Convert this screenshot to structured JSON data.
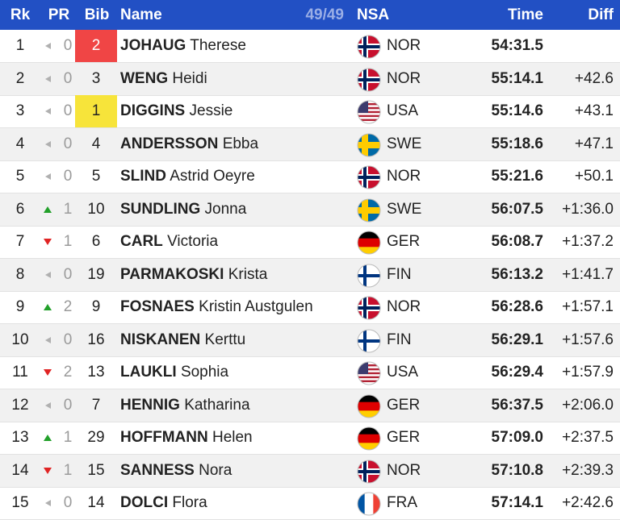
{
  "header": {
    "rank": "Rk",
    "pr": "PR",
    "bib": "Bib",
    "name": "Name",
    "count": "49/49",
    "nsa": "NSA",
    "time": "Time",
    "diff": "Diff"
  },
  "rows": [
    {
      "rank": 1,
      "trend": "same",
      "pr": 0,
      "bib": 2,
      "bib_highlight": "#f04545",
      "bib_text_color": "#ffffff",
      "surname": "JOHAUG",
      "given": "Therese",
      "nsa": "NOR",
      "flag": {
        "pattern": "nordic",
        "colors": [
          "#c8102e",
          "#ffffff",
          "#00205b"
        ]
      },
      "time": "54:31.5"
    },
    {
      "rank": 2,
      "trend": "same",
      "pr": 0,
      "bib": 3,
      "surname": "WENG",
      "given": "Heidi",
      "nsa": "NOR",
      "flag": {
        "pattern": "nordic",
        "colors": [
          "#c8102e",
          "#ffffff",
          "#00205b"
        ]
      },
      "time": "55:14.1",
      "diff": "+42.6"
    },
    {
      "rank": 3,
      "trend": "same",
      "pr": 0,
      "bib": 1,
      "bib_highlight": "#f7e43a",
      "bib_text_color": "#222222",
      "surname": "DIGGINS",
      "given": "Jessie",
      "nsa": "USA",
      "flag": {
        "pattern": "usa",
        "colors": [
          "#b22234",
          "#ffffff",
          "#3c3b6e"
        ]
      },
      "time": "55:14.6",
      "diff": "+43.1"
    },
    {
      "rank": 4,
      "trend": "same",
      "pr": 0,
      "bib": 4,
      "surname": "ANDERSSON",
      "given": "Ebba",
      "nsa": "SWE",
      "flag": {
        "pattern": "nordic",
        "colors": [
          "#006aa7",
          "#fecc00",
          "#fecc00"
        ]
      },
      "time": "55:18.6",
      "diff": "+47.1"
    },
    {
      "rank": 5,
      "trend": "same",
      "pr": 0,
      "bib": 5,
      "surname": "SLIND",
      "given": "Astrid Oeyre",
      "nsa": "NOR",
      "flag": {
        "pattern": "nordic",
        "colors": [
          "#c8102e",
          "#ffffff",
          "#00205b"
        ]
      },
      "time": "55:21.6",
      "diff": "+50.1"
    },
    {
      "rank": 6,
      "trend": "up",
      "pr": 1,
      "bib": 10,
      "surname": "SUNDLING",
      "given": "Jonna",
      "nsa": "SWE",
      "flag": {
        "pattern": "nordic",
        "colors": [
          "#006aa7",
          "#fecc00",
          "#fecc00"
        ]
      },
      "time": "56:07.5",
      "diff": "+1:36.0"
    },
    {
      "rank": 7,
      "trend": "down",
      "pr": 1,
      "bib": 6,
      "surname": "CARL",
      "given": "Victoria",
      "nsa": "GER",
      "flag": {
        "pattern": "hstripes",
        "colors": [
          "#000000",
          "#dd0000",
          "#ffce00"
        ]
      },
      "time": "56:08.7",
      "diff": "+1:37.2"
    },
    {
      "rank": 8,
      "trend": "same",
      "pr": 0,
      "bib": 19,
      "surname": "PARMAKOSKI",
      "given": "Krista",
      "nsa": "FIN",
      "flag": {
        "pattern": "nordic",
        "colors": [
          "#ffffff",
          "#ffffff",
          "#003580"
        ]
      },
      "time": "56:13.2",
      "diff": "+1:41.7"
    },
    {
      "rank": 9,
      "trend": "up",
      "pr": 2,
      "bib": 9,
      "surname": "FOSNAES",
      "given": "Kristin Austgulen",
      "nsa": "NOR",
      "flag": {
        "pattern": "nordic",
        "colors": [
          "#c8102e",
          "#ffffff",
          "#00205b"
        ]
      },
      "time": "56:28.6",
      "diff": "+1:57.1"
    },
    {
      "rank": 10,
      "trend": "same",
      "pr": 0,
      "bib": 16,
      "surname": "NISKANEN",
      "given": "Kerttu",
      "nsa": "FIN",
      "flag": {
        "pattern": "nordic",
        "colors": [
          "#ffffff",
          "#ffffff",
          "#003580"
        ]
      },
      "time": "56:29.1",
      "diff": "+1:57.6"
    },
    {
      "rank": 11,
      "trend": "down",
      "pr": 2,
      "bib": 13,
      "surname": "LAUKLI",
      "given": "Sophia",
      "nsa": "USA",
      "flag": {
        "pattern": "usa",
        "colors": [
          "#b22234",
          "#ffffff",
          "#3c3b6e"
        ]
      },
      "time": "56:29.4",
      "diff": "+1:57.9"
    },
    {
      "rank": 12,
      "trend": "same",
      "pr": 0,
      "bib": 7,
      "surname": "HENNIG",
      "given": "Katharina",
      "nsa": "GER",
      "flag": {
        "pattern": "hstripes",
        "colors": [
          "#000000",
          "#dd0000",
          "#ffce00"
        ]
      },
      "time": "56:37.5",
      "diff": "+2:06.0"
    },
    {
      "rank": 13,
      "trend": "up",
      "pr": 1,
      "bib": 29,
      "surname": "HOFFMANN",
      "given": "Helen",
      "nsa": "GER",
      "flag": {
        "pattern": "hstripes",
        "colors": [
          "#000000",
          "#dd0000",
          "#ffce00"
        ]
      },
      "time": "57:09.0",
      "diff": "+2:37.5"
    },
    {
      "rank": 14,
      "trend": "down",
      "pr": 1,
      "bib": 15,
      "surname": "SANNESS",
      "given": "Nora",
      "nsa": "NOR",
      "flag": {
        "pattern": "nordic",
        "colors": [
          "#c8102e",
          "#ffffff",
          "#00205b"
        ]
      },
      "time": "57:10.8",
      "diff": "+2:39.3"
    },
    {
      "rank": 15,
      "trend": "same",
      "pr": 0,
      "bib": 14,
      "surname": "DOLCI",
      "given": "Flora",
      "nsa": "FRA",
      "flag": {
        "pattern": "vstripes",
        "colors": [
          "#0055a4",
          "#ffffff",
          "#ef4135"
        ]
      },
      "time": "57:14.1",
      "diff": "+2:42.6"
    }
  ]
}
